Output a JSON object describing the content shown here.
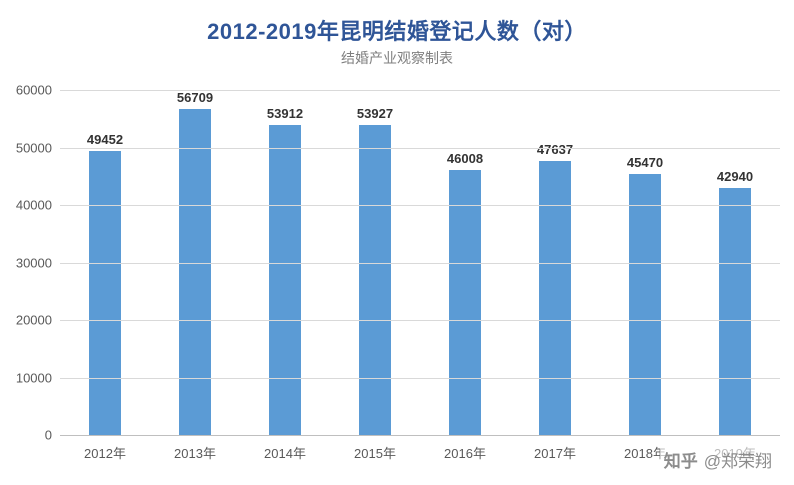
{
  "chart_data": {
    "type": "bar",
    "title": "2012-2019年昆明结婚登记人数（对）",
    "subtitle": "结婚产业观察制表",
    "categories": [
      "2012年",
      "2013年",
      "2014年",
      "2015年",
      "2016年",
      "2017年",
      "2018年",
      "2019年"
    ],
    "values": [
      49452,
      56709,
      53912,
      53927,
      46008,
      47637,
      45470,
      42940
    ],
    "xlabel": "",
    "ylabel": "",
    "ylim": [
      0,
      60000
    ],
    "ytick_interval": 10000,
    "yticks": [
      0,
      10000,
      20000,
      30000,
      40000,
      50000,
      60000
    ],
    "grid": true,
    "legend": false,
    "bar_color": "#5B9BD5",
    "title_color": "#2F5597"
  },
  "watermark": {
    "brand": "知乎",
    "handle": "@郑荣翔"
  }
}
